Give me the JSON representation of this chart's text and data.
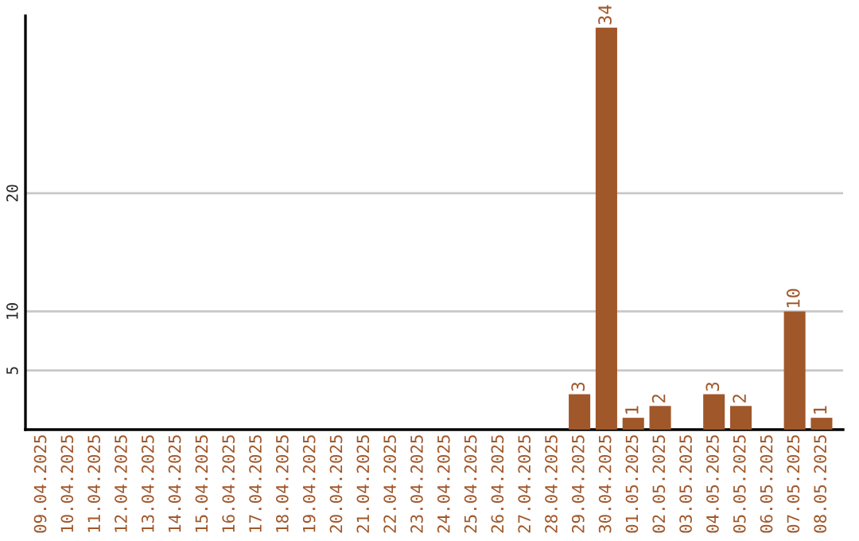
{
  "chart_data": {
    "type": "bar",
    "categories": [
      "09.04.2025",
      "10.04.2025",
      "11.04.2025",
      "12.04.2025",
      "13.04.2025",
      "14.04.2025",
      "15.04.2025",
      "16.04.2025",
      "17.04.2025",
      "18.04.2025",
      "19.04.2025",
      "20.04.2025",
      "21.04.2025",
      "22.04.2025",
      "23.04.2025",
      "24.04.2025",
      "25.04.2025",
      "26.04.2025",
      "27.04.2025",
      "28.04.2025",
      "29.04.2025",
      "30.04.2025",
      "01.05.2025",
      "02.05.2025",
      "03.05.2025",
      "04.05.2025",
      "05.05.2025",
      "06.05.2025",
      "07.05.2025",
      "08.05.2025"
    ],
    "values": [
      0,
      0,
      0,
      0,
      0,
      0,
      0,
      0,
      0,
      0,
      0,
      0,
      0,
      0,
      0,
      0,
      0,
      0,
      0,
      0,
      3,
      34,
      1,
      2,
      0,
      3,
      2,
      0,
      10,
      1
    ],
    "value_labels": [
      null,
      null,
      null,
      null,
      null,
      null,
      null,
      null,
      null,
      null,
      null,
      null,
      null,
      null,
      null,
      null,
      null,
      null,
      null,
      null,
      "3",
      "34",
      "1",
      "2",
      null,
      "3",
      "2",
      null,
      "10",
      "1"
    ],
    "color": "#a0572a",
    "ylim": [
      0,
      35
    ],
    "yticks": [
      5,
      10,
      20
    ],
    "grid": "y",
    "legend": false
  }
}
